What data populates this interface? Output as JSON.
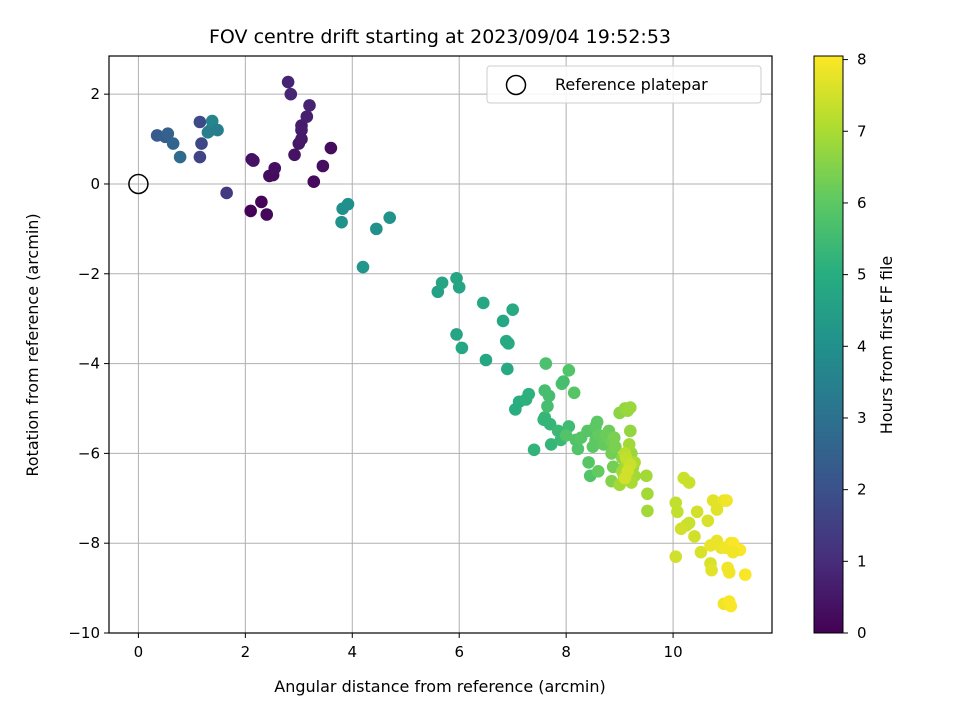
{
  "chart_data": {
    "type": "scatter",
    "title": "FOV centre drift starting at 2023/09/04 19:52:53",
    "xlabel": "Angular distance from reference (arcmin)",
    "ylabel": "Rotation from reference (arcmin)",
    "xlim": [
      -0.55,
      11.85
    ],
    "ylim": [
      -10.0,
      2.85
    ],
    "x_ticks": [
      0,
      2,
      4,
      6,
      8,
      10
    ],
    "y_ticks": [
      -10,
      -8,
      -6,
      -4,
      -2,
      0,
      2
    ],
    "x_tick_labels": [
      "0",
      "2",
      "4",
      "6",
      "8",
      "10"
    ],
    "y_tick_labels": [
      "−10",
      "−8",
      "−6",
      "−4",
      "−2",
      "0",
      "2"
    ],
    "grid": true,
    "colormap": "viridis",
    "colorbar": {
      "label": "Hours from first FF file",
      "range": [
        0,
        8.05
      ],
      "ticks": [
        0,
        1,
        2,
        3,
        4,
        5,
        6,
        7,
        8
      ],
      "tick_labels": [
        "0",
        "1",
        "2",
        "3",
        "4",
        "5",
        "6",
        "7",
        "8"
      ]
    },
    "legend": {
      "placement": "top-right",
      "entries": [
        {
          "label": "Reference platepar",
          "marker": "open-circle"
        }
      ]
    },
    "reference_point": {
      "x": 0,
      "y": 0
    },
    "points": [
      [
        2.1,
        -0.6,
        0.05
      ],
      [
        2.3,
        -0.4,
        0.1
      ],
      [
        2.4,
        -0.68,
        0.15
      ],
      [
        2.52,
        0.2,
        0.2
      ],
      [
        2.45,
        0.18,
        0.25
      ],
      [
        2.55,
        0.35,
        0.3
      ],
      [
        2.12,
        0.55,
        0.35
      ],
      [
        2.15,
        0.52,
        0.4
      ],
      [
        3.28,
        0.05,
        0.2
      ],
      [
        3.45,
        0.4,
        0.3
      ],
      [
        3.6,
        0.8,
        0.25
      ],
      [
        2.92,
        0.65,
        0.4
      ],
      [
        3.0,
        0.9,
        0.5
      ],
      [
        3.05,
        1.0,
        0.55
      ],
      [
        3.05,
        1.2,
        0.6
      ],
      [
        3.05,
        1.3,
        0.65
      ],
      [
        3.15,
        1.5,
        0.7
      ],
      [
        3.2,
        1.75,
        0.75
      ],
      [
        2.8,
        2.27,
        0.8
      ],
      [
        2.85,
        2.0,
        0.85
      ],
      [
        1.15,
        0.6,
        1.6
      ],
      [
        1.65,
        -0.2,
        1.4
      ],
      [
        1.18,
        0.9,
        1.75
      ],
      [
        1.15,
        1.38,
        1.8
      ],
      [
        0.35,
        1.08,
        2.3
      ],
      [
        0.5,
        1.05,
        2.4
      ],
      [
        0.55,
        1.12,
        2.5
      ],
      [
        0.65,
        0.9,
        2.6
      ],
      [
        0.78,
        0.6,
        2.8
      ],
      [
        1.35,
        1.2,
        3.2
      ],
      [
        1.3,
        1.15,
        3.4
      ],
      [
        1.38,
        1.4,
        3.6
      ],
      [
        1.48,
        1.2,
        3.4
      ],
      [
        3.8,
        -0.85,
        4.1
      ],
      [
        3.82,
        -0.55,
        4.0
      ],
      [
        3.92,
        -0.45,
        4.0
      ],
      [
        4.45,
        -1.0,
        4.0
      ],
      [
        4.7,
        -0.75,
        4.1
      ],
      [
        4.2,
        -1.85,
        4.2
      ],
      [
        5.6,
        -2.4,
        4.6
      ],
      [
        5.68,
        -2.2,
        4.7
      ],
      [
        5.95,
        -2.1,
        4.7
      ],
      [
        6.0,
        -2.3,
        4.7
      ],
      [
        6.45,
        -2.65,
        4.8
      ],
      [
        5.95,
        -3.35,
        4.7
      ],
      [
        6.05,
        -3.65,
        4.8
      ],
      [
        6.5,
        -3.92,
        4.8
      ],
      [
        6.82,
        -3.05,
        4.8
      ],
      [
        6.88,
        -3.5,
        4.9
      ],
      [
        6.92,
        -3.55,
        4.9
      ],
      [
        6.9,
        -4.12,
        4.9
      ],
      [
        7.0,
        -2.8,
        4.9
      ],
      [
        7.05,
        -5.02,
        5.0
      ],
      [
        7.12,
        -4.85,
        5.0
      ],
      [
        7.25,
        -4.8,
        5.1
      ],
      [
        7.3,
        -4.68,
        5.1
      ],
      [
        7.4,
        -5.92,
        5.2
      ],
      [
        7.58,
        -5.25,
        5.3
      ],
      [
        7.6,
        -5.2,
        5.3
      ],
      [
        7.7,
        -5.35,
        5.3
      ],
      [
        7.72,
        -5.8,
        5.3
      ],
      [
        7.85,
        -5.5,
        5.4
      ],
      [
        7.9,
        -5.7,
        5.4
      ],
      [
        8.05,
        -5.4,
        5.5
      ],
      [
        7.6,
        -4.6,
        5.6
      ],
      [
        7.65,
        -4.95,
        5.6
      ],
      [
        7.68,
        -4.72,
        5.6
      ],
      [
        7.62,
        -4.0,
        5.7
      ],
      [
        7.92,
        -4.45,
        5.7
      ],
      [
        7.95,
        -4.4,
        5.6
      ],
      [
        8.0,
        -5.6,
        5.8
      ],
      [
        8.05,
        -4.15,
        5.8
      ],
      [
        8.15,
        -4.65,
        5.9
      ],
      [
        8.18,
        -5.7,
        5.8
      ],
      [
        8.22,
        -5.9,
        5.8
      ],
      [
        8.28,
        -5.65,
        5.9
      ],
      [
        8.4,
        -5.5,
        5.9
      ],
      [
        8.42,
        -6.2,
        5.9
      ],
      [
        8.45,
        -6.5,
        5.8
      ],
      [
        8.5,
        -5.85,
        6.0
      ],
      [
        8.55,
        -5.4,
        6.0
      ],
      [
        8.55,
        -5.7,
        6.0
      ],
      [
        8.58,
        -5.3,
        6.0
      ],
      [
        8.6,
        -6.4,
        6.1
      ],
      [
        8.62,
        -5.6,
        6.1
      ],
      [
        8.7,
        -5.8,
        6.1
      ],
      [
        8.75,
        -5.6,
        6.2
      ],
      [
        8.8,
        -5.5,
        6.2
      ],
      [
        8.85,
        -6.0,
        6.3
      ],
      [
        8.85,
        -5.75,
        6.3
      ],
      [
        8.88,
        -6.3,
        6.3
      ],
      [
        8.9,
        -5.65,
        6.4
      ],
      [
        8.92,
        -5.85,
        6.4
      ],
      [
        8.85,
        -6.62,
        6.5
      ],
      [
        9.0,
        -5.1,
        6.6
      ],
      [
        9.05,
        -6.1,
        6.6
      ],
      [
        9.08,
        -6.5,
        6.7
      ],
      [
        9.1,
        -5.0,
        6.7
      ],
      [
        9.15,
        -5.05,
        6.8
      ],
      [
        9.2,
        -4.98,
        6.8
      ],
      [
        9.1,
        -6.3,
        6.7
      ],
      [
        9.2,
        -5.5,
        6.7
      ],
      [
        9.22,
        -6.0,
        6.8
      ],
      [
        9.25,
        -6.3,
        6.8
      ],
      [
        9.28,
        -6.5,
        6.9
      ],
      [
        9.05,
        -6.4,
        6.9
      ],
      [
        9.18,
        -5.8,
        6.9
      ],
      [
        9.28,
        -6.2,
        7.0
      ],
      [
        9.22,
        -6.65,
        7.0
      ],
      [
        9.0,
        -6.7,
        6.9
      ],
      [
        9.5,
        -6.5,
        6.9
      ],
      [
        9.52,
        -6.9,
        6.9
      ],
      [
        9.52,
        -7.28,
        6.9
      ],
      [
        9.15,
        -6.2,
        7.1
      ],
      [
        9.1,
        -6.0,
        7.2
      ],
      [
        9.12,
        -6.1,
        7.3
      ],
      [
        9.2,
        -6.25,
        7.4
      ],
      [
        9.15,
        -6.4,
        7.5
      ],
      [
        9.1,
        -6.55,
        7.5
      ],
      [
        10.05,
        -8.3,
        7.5
      ],
      [
        10.05,
        -7.1,
        7.3
      ],
      [
        10.08,
        -7.3,
        7.3
      ],
      [
        10.2,
        -6.55,
        7.4
      ],
      [
        10.25,
        -7.6,
        7.4
      ],
      [
        10.3,
        -6.65,
        7.4
      ],
      [
        10.3,
        -7.55,
        7.4
      ],
      [
        10.15,
        -7.68,
        7.5
      ],
      [
        10.4,
        -7.85,
        7.5
      ],
      [
        10.45,
        -7.3,
        7.5
      ],
      [
        10.52,
        -8.2,
        7.6
      ],
      [
        10.65,
        -7.5,
        7.6
      ],
      [
        10.7,
        -8.45,
        7.6
      ],
      [
        10.72,
        -8.6,
        7.7
      ],
      [
        10.75,
        -7.05,
        7.7
      ],
      [
        10.82,
        -7.25,
        7.7
      ],
      [
        10.7,
        -8.05,
        7.8
      ],
      [
        10.8,
        -8.0,
        7.8
      ],
      [
        10.82,
        -7.95,
        7.8
      ],
      [
        10.9,
        -8.1,
        7.8
      ],
      [
        10.95,
        -9.35,
        7.9
      ],
      [
        10.95,
        -7.05,
        7.8
      ],
      [
        10.98,
        -8.1,
        7.9
      ],
      [
        11.0,
        -7.05,
        7.9
      ],
      [
        11.02,
        -8.55,
        7.9
      ],
      [
        11.05,
        -8.65,
        7.9
      ],
      [
        11.08,
        -9.4,
        8.0
      ],
      [
        11.08,
        -8.0,
        7.9
      ],
      [
        11.12,
        -8.0,
        8.0
      ],
      [
        11.25,
        -8.15,
        8.0
      ],
      [
        11.35,
        -8.7,
        8.0
      ],
      [
        11.12,
        -8.2,
        7.9
      ],
      [
        11.05,
        -9.3,
        8.0
      ]
    ]
  }
}
